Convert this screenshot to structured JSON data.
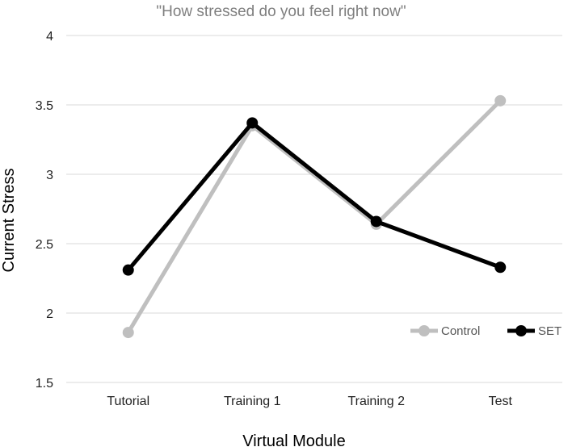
{
  "chart_data": {
    "type": "line",
    "title": "\"How stressed do you feel right now\"",
    "xlabel": "Virtual Module",
    "ylabel": "Current Stress",
    "categories": [
      "Tutorial",
      "Training 1",
      "Training 2",
      "Test"
    ],
    "ylim": [
      1.5,
      4
    ],
    "yticks": [
      "1.5",
      "2",
      "2.5",
      "3",
      "3.5",
      "4"
    ],
    "grid": true,
    "legend_position": "bottom-right",
    "series": [
      {
        "name": "Control",
        "color": "#bfbfbf",
        "values": [
          1.86,
          3.35,
          2.64,
          3.53
        ]
      },
      {
        "name": "SET",
        "color": "#000000",
        "values": [
          2.31,
          3.37,
          2.66,
          2.33
        ]
      }
    ]
  }
}
